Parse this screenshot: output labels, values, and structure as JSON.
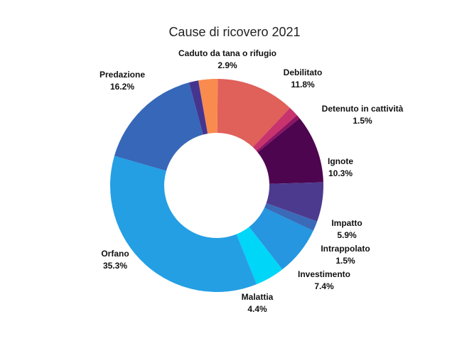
{
  "chart_data": {
    "type": "pie",
    "donut": true,
    "title": "Cause di ricovero 2021",
    "legend": "none",
    "slices": [
      {
        "label": "Caduto da tana o rifugio",
        "value": 2.9,
        "value_label": "2.9%",
        "color": "#f98b4f"
      },
      {
        "label": "Debilitato",
        "value": 11.8,
        "value_label": "11.8%",
        "color": "#e0605a"
      },
      {
        "label": "Detenuto in cattività",
        "value": 1.5,
        "value_label": "1.5%",
        "color": "#c8336e"
      },
      {
        "label": "",
        "value": 0.6,
        "value_label": "",
        "color": "#8e1464"
      },
      {
        "label": "Ignote",
        "value": 10.3,
        "value_label": "10.3%",
        "color": "#4e0550"
      },
      {
        "label": "Impatto",
        "value": 5.9,
        "value_label": "5.9%",
        "color": "#4c3a8f"
      },
      {
        "label": "Intrappolato",
        "value": 1.5,
        "value_label": "1.5%",
        "color": "#3a6ab8"
      },
      {
        "label": "Investimento",
        "value": 7.4,
        "value_label": "7.4%",
        "color": "#2596df"
      },
      {
        "label": "Malattia",
        "value": 4.4,
        "value_label": "4.4%",
        "color": "#00d6f8"
      },
      {
        "label": "Orfano",
        "value": 35.3,
        "value_label": "35.3%",
        "color": "#249fe4"
      },
      {
        "label": "Predazione",
        "value": 16.2,
        "value_label": "16.2%",
        "color": "#3767b8"
      },
      {
        "label": "",
        "value": 1.4,
        "value_label": "",
        "color": "#45358f"
      }
    ]
  }
}
